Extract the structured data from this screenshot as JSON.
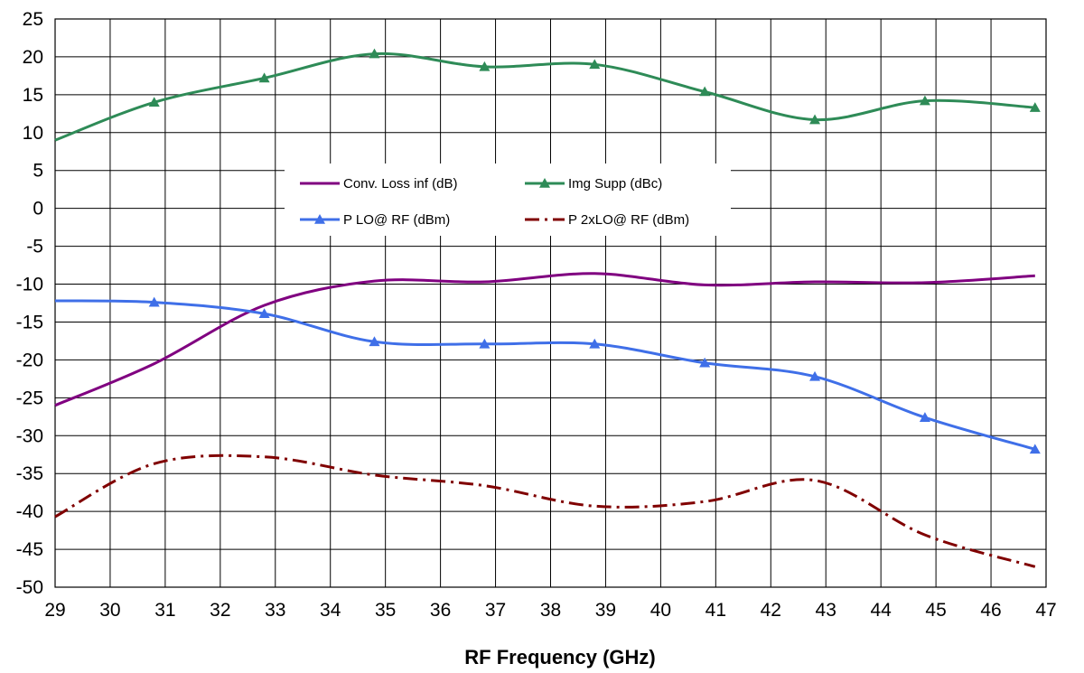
{
  "chart_data": {
    "type": "line",
    "title": "",
    "xlabel": "RF Frequency (GHz)",
    "ylabel": "",
    "xlim": [
      29,
      47
    ],
    "ylim": [
      -50,
      25
    ],
    "x_ticks": [
      "29",
      "30",
      "31",
      "32",
      "33",
      "34",
      "35",
      "36",
      "37",
      "38",
      "39",
      "40",
      "41",
      "42",
      "43",
      "44",
      "45",
      "46",
      "47"
    ],
    "y_ticks": [
      "-50",
      "-45",
      "-40",
      "-35",
      "-30",
      "-25",
      "-20",
      "-15",
      "-10",
      "-5",
      "0",
      "5",
      "10",
      "15",
      "20",
      "25"
    ],
    "grid": true,
    "legend_position": "center",
    "series": [
      {
        "name": "Conv. Loss inf (dB)",
        "color": "#800080",
        "style": "solid",
        "marker": "none",
        "x": [
          29,
          30.8,
          32.8,
          34.8,
          36.8,
          38.8,
          40.8,
          42.8,
          44.8,
          46.8
        ],
        "y": [
          -26,
          -20.5,
          -12.8,
          -9.6,
          -9.7,
          -8.6,
          -10.1,
          -9.7,
          -9.8,
          -8.9
        ]
      },
      {
        "name": "Img Supp (dBc)",
        "color": "#2E8B57",
        "style": "solid",
        "marker": "triangle",
        "x": [
          29,
          30.8,
          32.8,
          34.8,
          36.8,
          38.8,
          40.8,
          42.8,
          44.8,
          46.8
        ],
        "y": [
          9,
          14,
          17.2,
          20.4,
          18.7,
          19,
          15.4,
          11.7,
          14.2,
          13.3
        ]
      },
      {
        "name": "P LO@ RF (dBm)",
        "color": "#3F6FE8",
        "style": "solid",
        "marker": "triangle",
        "x": [
          29,
          30.8,
          32.8,
          34.8,
          36.8,
          38.8,
          40.8,
          42.8,
          44.8,
          46.8
        ],
        "y": [
          -12.2,
          -12.4,
          -13.9,
          -17.6,
          -17.9,
          -17.9,
          -20.4,
          -22.2,
          -27.6,
          -31.8
        ]
      },
      {
        "name": "P 2xLO@ RF (dBm)",
        "color": "#800000",
        "style": "dashdot",
        "marker": "none",
        "x": [
          29,
          30.8,
          32.8,
          34.8,
          36.8,
          38.8,
          40.8,
          42.8,
          44.8,
          46.8
        ],
        "y": [
          -40.7,
          -33.7,
          -32.8,
          -35.2,
          -36.6,
          -39.3,
          -38.7,
          -35.9,
          -43.1,
          -47.3
        ]
      }
    ]
  }
}
